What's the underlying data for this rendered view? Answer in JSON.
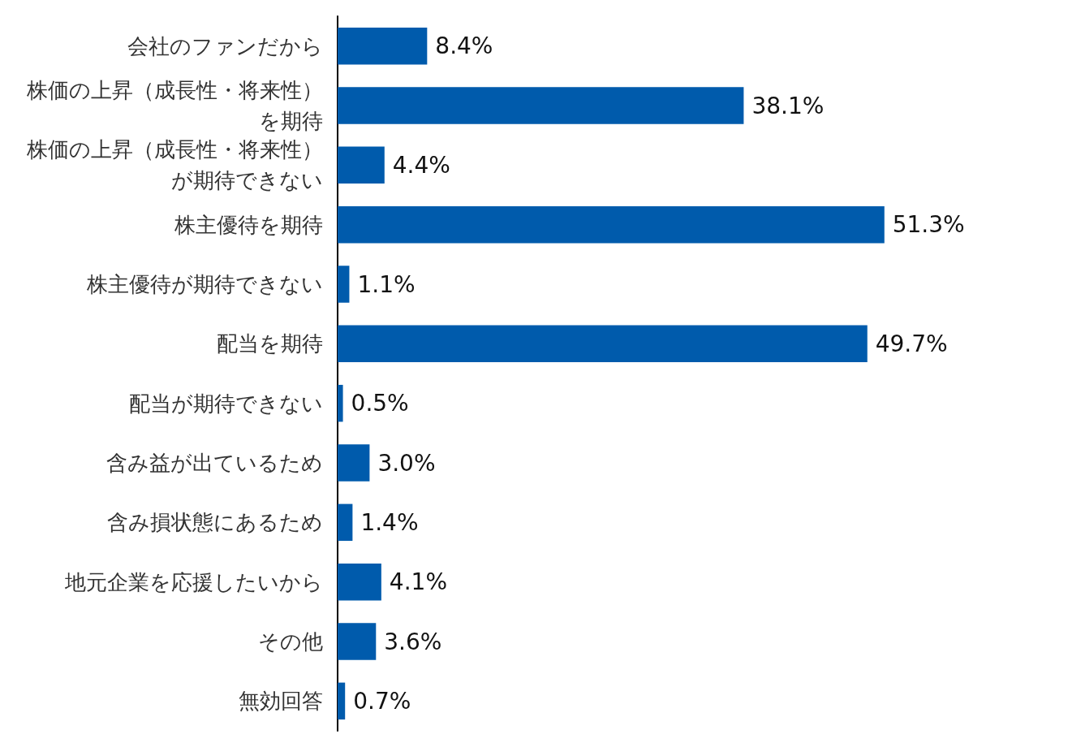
{
  "chart_data": {
    "type": "bar",
    "orientation": "horizontal",
    "categories": [
      "会社のファンだから",
      "株価の上昇（成長性・将来性）を期待",
      "株価の上昇（成長性・将来性）が期待できない",
      "株主優待を期待",
      "株主優待が期待できない",
      "配当を期待",
      "配当が期待できない",
      "含み益が出ているため",
      "含み損状態にあるため",
      "地元企業を応援したいから",
      "その他",
      "無効回答"
    ],
    "values": [
      8.4,
      38.1,
      4.4,
      51.3,
      1.1,
      49.7,
      0.5,
      3.0,
      1.4,
      4.1,
      3.6,
      0.7
    ],
    "value_labels": [
      "8.4%",
      "38.1%",
      "4.4%",
      "51.3%",
      "1.1%",
      "49.7%",
      "0.5%",
      "3.0%",
      "1.4%",
      "4.1%",
      "3.6%",
      "0.7%"
    ],
    "color": "#005bac"
  }
}
